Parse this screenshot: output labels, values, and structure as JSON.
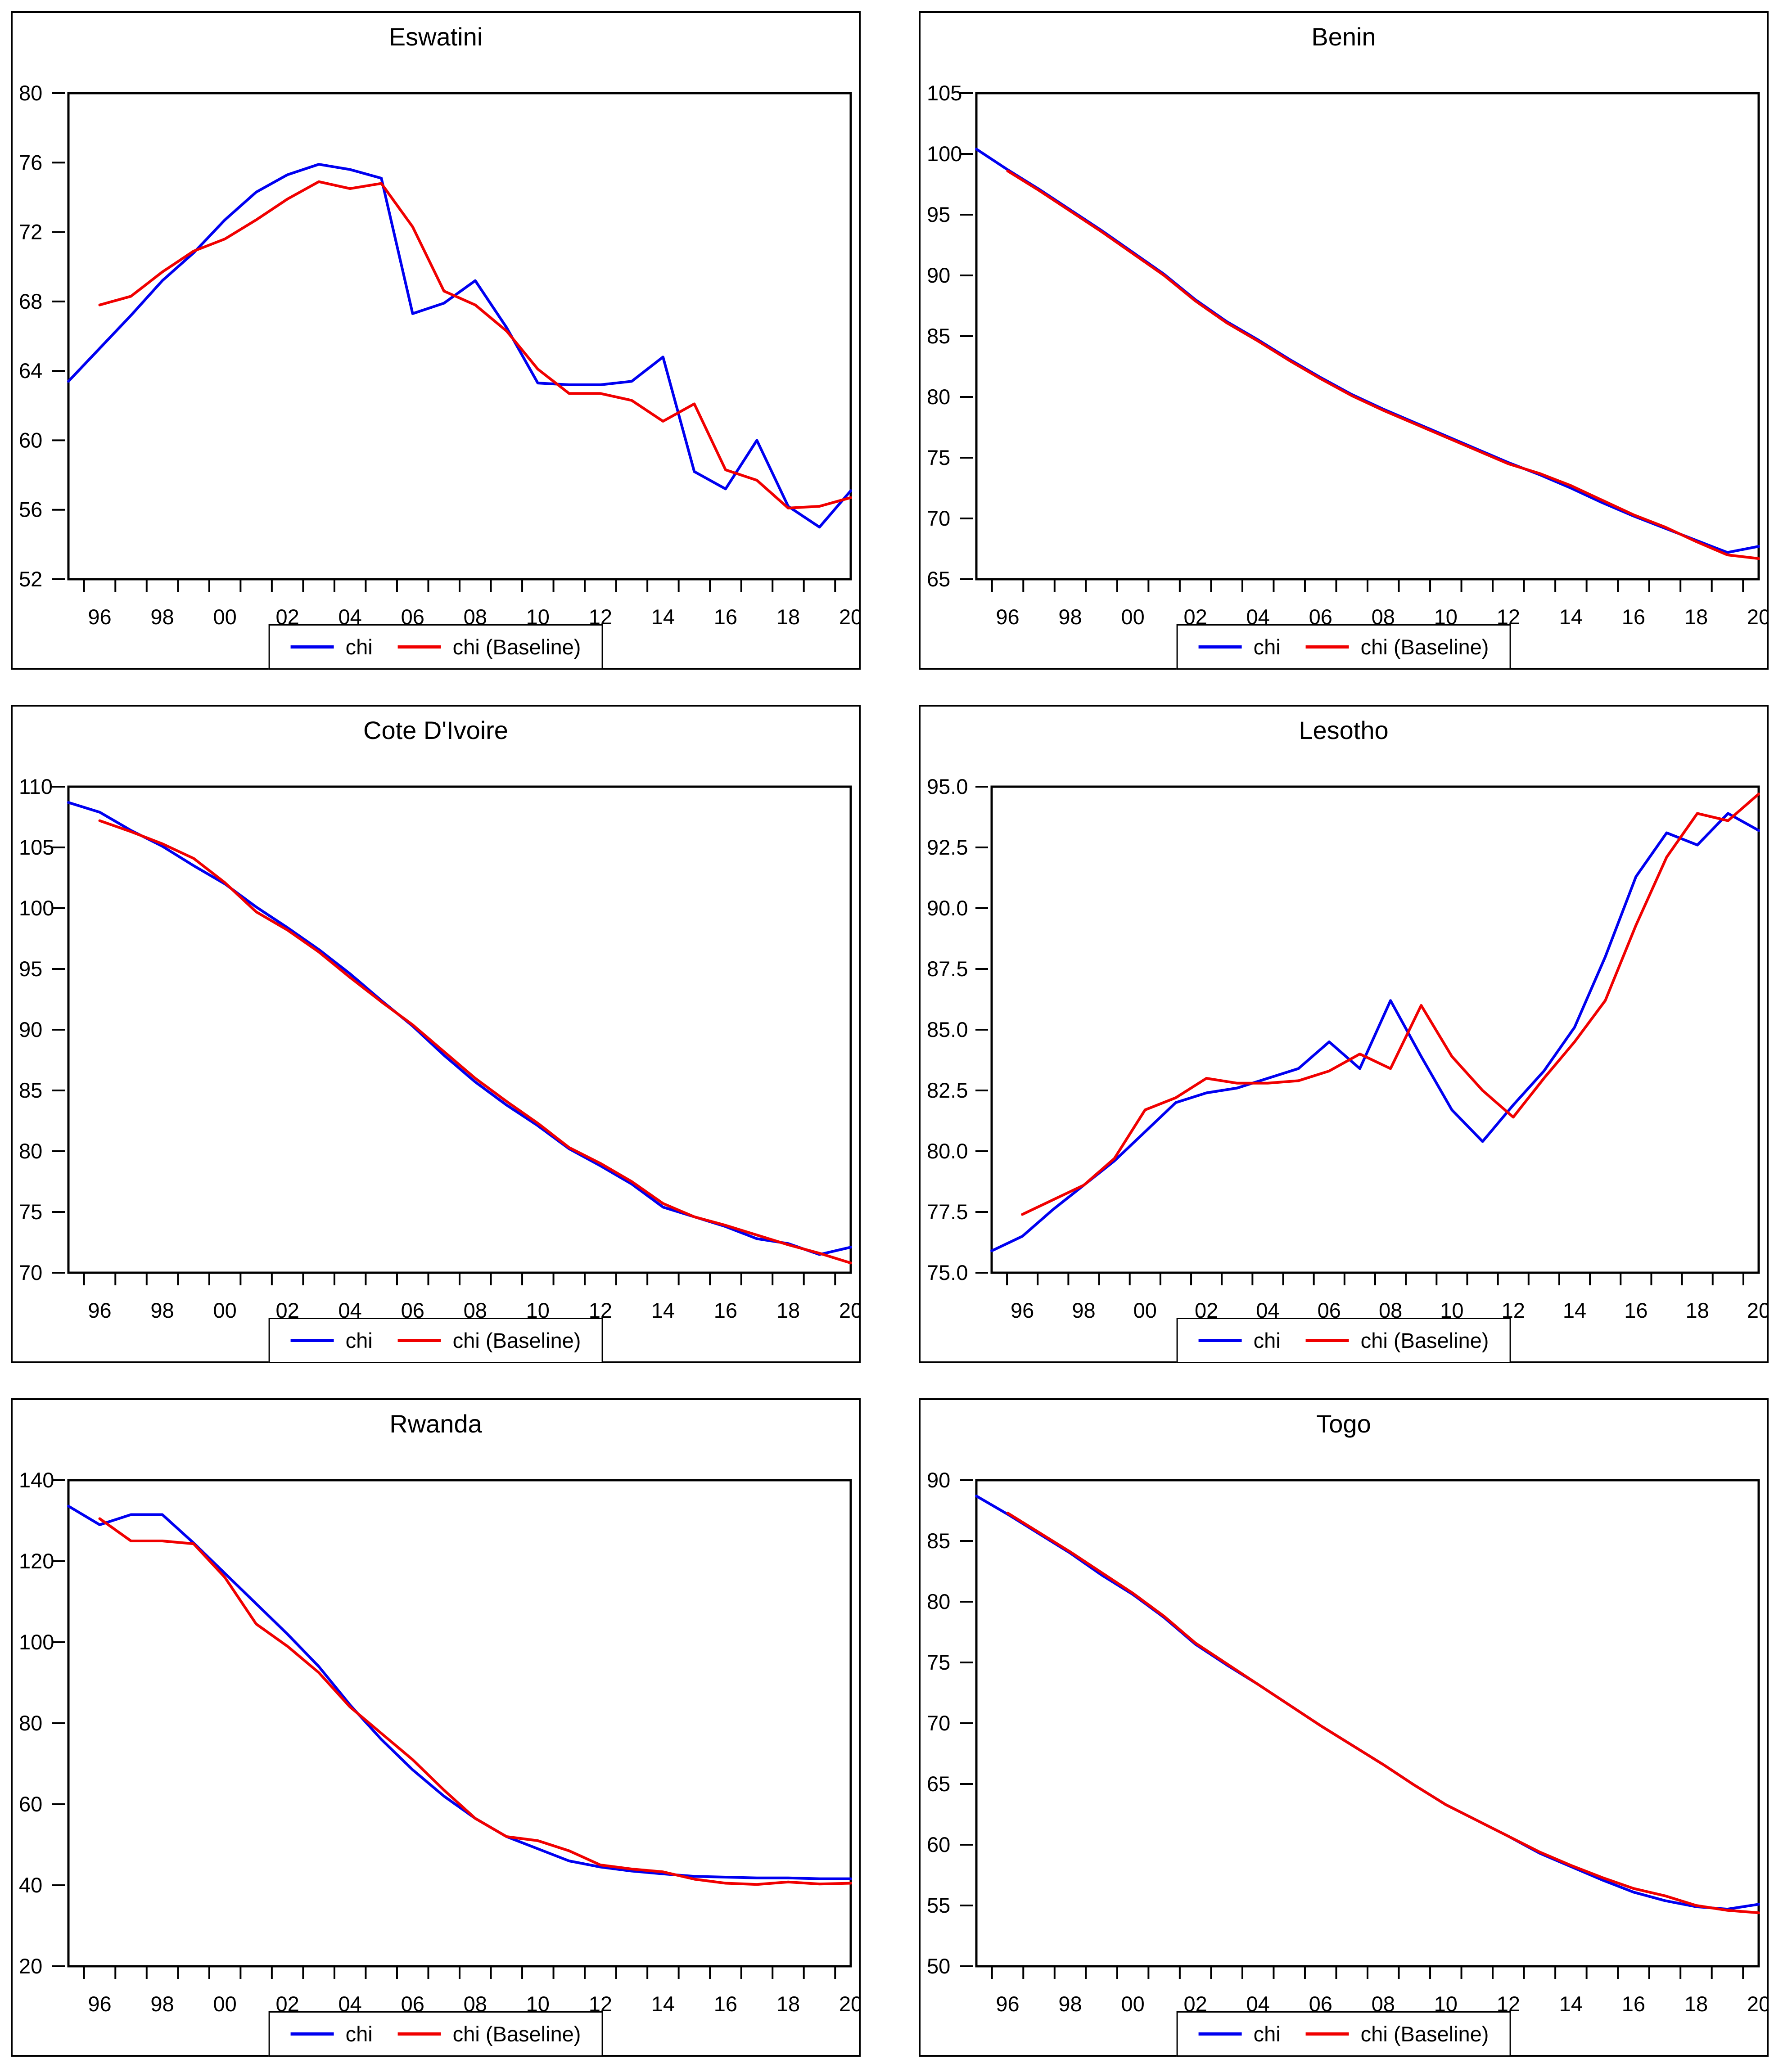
{
  "legend": {
    "chi_label": "chi",
    "baseline_label": "chi (Baseline)"
  },
  "colors": {
    "chi": "#0000F0",
    "baseline": "#F00000",
    "axis": "#000000"
  },
  "chart_data": [
    {
      "type": "line",
      "title": "Eswatini",
      "xlim": [
        1995,
        2020
      ],
      "ylim": [
        52,
        80
      ],
      "grid": false,
      "legend_position": "bottom",
      "yticks": [
        80,
        76,
        72,
        68,
        64,
        60,
        56,
        52
      ],
      "ytick_labels": [
        "80",
        "76",
        "72",
        "68",
        "64",
        "60",
        "56",
        "52"
      ],
      "y_decimals": false,
      "xticks": [
        1996,
        1998,
        2000,
        2002,
        2004,
        2006,
        2008,
        2010,
        2012,
        2014,
        2016,
        2018,
        2020
      ],
      "xtick_labels": [
        "96",
        "98",
        "00",
        "02",
        "04",
        "06",
        "08",
        "10",
        "12",
        "14",
        "16",
        "18",
        "20"
      ],
      "series": [
        {
          "name": "chi",
          "color_key": "chi",
          "start_year": 1995,
          "values": [
            63.4,
            65.3,
            67.2,
            69.2,
            70.8,
            72.7,
            74.3,
            75.3,
            75.9,
            75.6,
            75.1,
            67.3,
            67.9,
            69.2,
            66.5,
            63.3,
            63.2,
            63.2,
            63.4,
            64.8,
            58.2,
            57.2,
            60.0,
            56.2,
            55.0,
            57.1
          ]
        },
        {
          "name": "chi (Baseline)",
          "color_key": "baseline",
          "start_year": 1996,
          "values": [
            null,
            67.8,
            68.3,
            69.7,
            70.9,
            71.6,
            72.7,
            73.9,
            74.9,
            74.5,
            74.8,
            72.3,
            68.6,
            67.8,
            66.3,
            64.1,
            62.7,
            62.7,
            62.3,
            61.1,
            62.1,
            58.3,
            57.7,
            56.1,
            56.2,
            56.7
          ]
        }
      ]
    },
    {
      "type": "line",
      "title": "Benin",
      "xlim": [
        1995,
        2020
      ],
      "ylim": [
        65,
        105
      ],
      "grid": false,
      "legend_position": "bottom",
      "yticks": [
        105,
        100,
        95,
        90,
        85,
        80,
        75,
        70,
        65
      ],
      "ytick_labels": [
        "105",
        "100",
        "95",
        "90",
        "85",
        "80",
        "75",
        "70",
        "65"
      ],
      "y_decimals": false,
      "xticks": [
        1996,
        1998,
        2000,
        2002,
        2004,
        2006,
        2008,
        2010,
        2012,
        2014,
        2016,
        2018,
        2020
      ],
      "xtick_labels": [
        "96",
        "98",
        "00",
        "02",
        "04",
        "06",
        "08",
        "10",
        "12",
        "14",
        "16",
        "18",
        "20"
      ],
      "series": [
        {
          "name": "chi",
          "color_key": "chi",
          "start_year": 1995,
          "values": [
            100.4,
            98.7,
            97.1,
            95.4,
            93.7,
            91.9,
            90.1,
            88.0,
            86.2,
            84.7,
            83.1,
            81.6,
            80.2,
            79.0,
            77.9,
            76.8,
            75.7,
            74.6,
            73.6,
            72.5,
            71.3,
            70.2,
            69.2,
            68.2,
            67.2,
            67.7
          ]
        },
        {
          "name": "chi (Baseline)",
          "color_key": "baseline",
          "start_year": 1996,
          "values": [
            null,
            98.6,
            97.0,
            95.3,
            93.6,
            91.8,
            90.0,
            87.9,
            86.1,
            84.6,
            83.0,
            81.5,
            80.1,
            78.9,
            77.8,
            76.7,
            75.6,
            74.5,
            73.7,
            72.7,
            71.5,
            70.3,
            69.3,
            68.1,
            67.0,
            66.7
          ]
        }
      ]
    },
    {
      "type": "line",
      "title": "Cote D'Ivoire",
      "xlim": [
        1995,
        2020
      ],
      "ylim": [
        70,
        110
      ],
      "grid": false,
      "legend_position": "bottom",
      "yticks": [
        110,
        105,
        100,
        95,
        90,
        85,
        80,
        75,
        70
      ],
      "ytick_labels": [
        "110",
        "105",
        "100",
        "95",
        "90",
        "85",
        "80",
        "75",
        "70"
      ],
      "y_decimals": false,
      "xticks": [
        1996,
        1998,
        2000,
        2002,
        2004,
        2006,
        2008,
        2010,
        2012,
        2014,
        2016,
        2018,
        2020
      ],
      "xtick_labels": [
        "96",
        "98",
        "00",
        "02",
        "04",
        "06",
        "08",
        "10",
        "12",
        "14",
        "16",
        "18",
        "20"
      ],
      "series": [
        {
          "name": "chi",
          "color_key": "chi",
          "start_year": 1995,
          "values": [
            108.7,
            107.9,
            106.4,
            105.1,
            103.5,
            102.0,
            100.1,
            98.4,
            96.6,
            94.6,
            92.4,
            90.3,
            87.9,
            85.7,
            83.8,
            82.1,
            80.2,
            78.8,
            77.3,
            75.4,
            74.6,
            73.8,
            72.8,
            72.4,
            71.5,
            72.1
          ]
        },
        {
          "name": "chi (Baseline)",
          "color_key": "baseline",
          "start_year": 1996,
          "values": [
            null,
            107.2,
            106.3,
            105.3,
            104.1,
            102.1,
            99.7,
            98.2,
            96.4,
            94.3,
            92.3,
            90.4,
            88.2,
            86.0,
            84.1,
            82.3,
            80.3,
            79.0,
            77.5,
            75.7,
            74.6,
            73.9,
            73.1,
            72.3,
            71.6,
            70.8
          ]
        }
      ]
    },
    {
      "type": "line",
      "title": "Lesotho",
      "xlim": [
        1995,
        2020
      ],
      "ylim": [
        75,
        95
      ],
      "grid": false,
      "legend_position": "bottom",
      "yticks": [
        95,
        92.5,
        90,
        87.5,
        85,
        82.5,
        80,
        77.5,
        75
      ],
      "ytick_labels": [
        "95.0",
        "92.5",
        "90.0",
        "87.5",
        "85.0",
        "82.5",
        "80.0",
        "77.5",
        "75.0"
      ],
      "y_decimals": true,
      "xticks": [
        1996,
        1998,
        2000,
        2002,
        2004,
        2006,
        2008,
        2010,
        2012,
        2014,
        2016,
        2018,
        2020
      ],
      "xtick_labels": [
        "96",
        "98",
        "00",
        "02",
        "04",
        "06",
        "08",
        "10",
        "12",
        "14",
        "16",
        "18",
        "20"
      ],
      "series": [
        {
          "name": "chi",
          "color_key": "chi",
          "start_year": 1995,
          "values": [
            75.9,
            76.5,
            77.6,
            78.6,
            79.6,
            80.8,
            82.0,
            82.4,
            82.6,
            83.0,
            83.4,
            84.5,
            83.4,
            86.2,
            83.9,
            81.7,
            80.4,
            81.9,
            83.3,
            85.1,
            88.0,
            91.3,
            93.1,
            92.6,
            93.9,
            93.2
          ]
        },
        {
          "name": "chi (Baseline)",
          "color_key": "baseline",
          "start_year": 1996,
          "values": [
            null,
            77.4,
            78.0,
            78.6,
            79.7,
            81.7,
            82.2,
            83.0,
            82.8,
            82.8,
            82.9,
            83.3,
            84.0,
            83.4,
            86.0,
            83.9,
            82.5,
            81.4,
            83.0,
            84.5,
            86.2,
            89.3,
            92.1,
            93.9,
            93.6,
            94.7
          ]
        }
      ]
    },
    {
      "type": "line",
      "title": "Rwanda",
      "xlim": [
        1995,
        2020
      ],
      "ylim": [
        20,
        140
      ],
      "grid": false,
      "legend_position": "bottom",
      "yticks": [
        140,
        120,
        100,
        80,
        60,
        40,
        20
      ],
      "ytick_labels": [
        "140",
        "120",
        "100",
        "80",
        "60",
        "40",
        "20"
      ],
      "y_decimals": false,
      "xticks": [
        1996,
        1998,
        2000,
        2002,
        2004,
        2006,
        2008,
        2010,
        2012,
        2014,
        2016,
        2018,
        2020
      ],
      "xtick_labels": [
        "96",
        "98",
        "00",
        "02",
        "04",
        "06",
        "08",
        "10",
        "12",
        "14",
        "16",
        "18",
        "20"
      ],
      "series": [
        {
          "name": "chi",
          "color_key": "chi",
          "start_year": 1995,
          "values": [
            133.6,
            129.0,
            131.5,
            131.5,
            124.5,
            117.0,
            109.5,
            102.0,
            94.0,
            84.5,
            76.0,
            68.5,
            62.0,
            56.5,
            52.0,
            49.0,
            46.0,
            44.5,
            43.5,
            42.8,
            42.2,
            42.0,
            41.8,
            41.8,
            41.6,
            41.6
          ]
        },
        {
          "name": "chi (Baseline)",
          "color_key": "baseline",
          "start_year": 1996,
          "values": [
            null,
            130.5,
            125.0,
            125.0,
            124.3,
            116.0,
            104.5,
            99.0,
            92.5,
            84.0,
            77.5,
            71.0,
            63.5,
            56.5,
            52.0,
            51.0,
            48.5,
            45.0,
            44.0,
            43.3,
            41.5,
            40.5,
            40.2,
            40.8,
            40.3,
            40.5
          ]
        }
      ]
    },
    {
      "type": "line",
      "title": "Togo",
      "xlim": [
        1995,
        2020
      ],
      "ylim": [
        50,
        90
      ],
      "grid": false,
      "legend_position": "bottom",
      "yticks": [
        90,
        85,
        80,
        75,
        70,
        65,
        60,
        55,
        50
      ],
      "ytick_labels": [
        "90",
        "85",
        "80",
        "75",
        "70",
        "65",
        "60",
        "55",
        "50"
      ],
      "y_decimals": false,
      "xticks": [
        1996,
        1998,
        2000,
        2002,
        2004,
        2006,
        2008,
        2010,
        2012,
        2014,
        2016,
        2018,
        2020
      ],
      "xtick_labels": [
        "96",
        "98",
        "00",
        "02",
        "04",
        "06",
        "08",
        "10",
        "12",
        "14",
        "16",
        "18",
        "20"
      ],
      "series": [
        {
          "name": "chi",
          "color_key": "chi",
          "start_year": 1995,
          "values": [
            88.7,
            87.2,
            85.6,
            84.0,
            82.2,
            80.6,
            78.7,
            76.5,
            74.8,
            73.2,
            71.5,
            69.8,
            68.2,
            66.6,
            64.9,
            63.3,
            62.0,
            60.7,
            59.3,
            58.2,
            57.1,
            56.1,
            55.4,
            54.9,
            54.7,
            55.1
          ]
        },
        {
          "name": "chi (Baseline)",
          "color_key": "baseline",
          "start_year": 1996,
          "values": [
            null,
            87.3,
            85.7,
            84.1,
            82.4,
            80.7,
            78.8,
            76.6,
            74.9,
            73.2,
            71.5,
            69.8,
            68.2,
            66.6,
            64.9,
            63.3,
            62.0,
            60.7,
            59.4,
            58.3,
            57.3,
            56.4,
            55.8,
            55.0,
            54.6,
            54.4
          ]
        }
      ]
    }
  ]
}
